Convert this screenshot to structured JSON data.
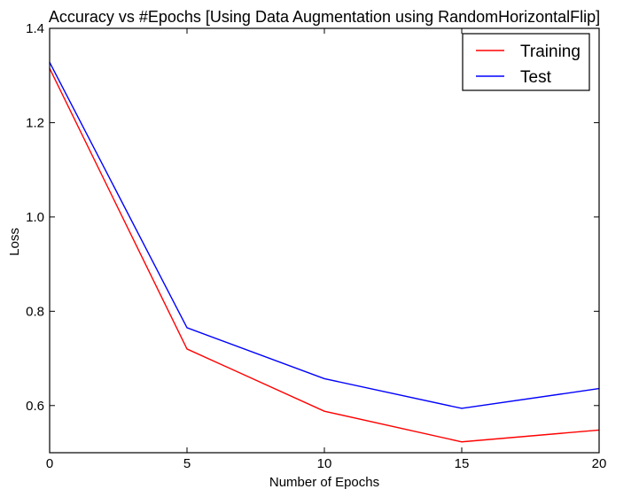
{
  "chart_data": {
    "type": "line",
    "title": "Accuracy vs #Epochs [Using Data Augmentation using RandomHorizontalFlip]",
    "xlabel": "Number of Epochs",
    "ylabel": "Loss",
    "xlim": [
      0,
      20
    ],
    "ylim": [
      0.5,
      1.4
    ],
    "xticks": [
      0,
      5,
      10,
      15,
      20
    ],
    "xtick_labels": [
      "0",
      "5",
      "10",
      "15",
      "20"
    ],
    "yticks": [
      0.6,
      0.8,
      1.0,
      1.2,
      1.4
    ],
    "ytick_labels": [
      "0.6",
      "0.8",
      "1.0",
      "1.2",
      "1.4"
    ],
    "grid": false,
    "legend_position": "top-right",
    "x": [
      0,
      5,
      10,
      15,
      20
    ],
    "series": [
      {
        "name": "Training",
        "color": "#ff0000",
        "values": [
          1.315,
          0.72,
          0.588,
          0.523,
          0.548
        ]
      },
      {
        "name": "Test",
        "color": "#0000ff",
        "values": [
          1.328,
          0.765,
          0.657,
          0.594,
          0.636
        ]
      }
    ]
  }
}
